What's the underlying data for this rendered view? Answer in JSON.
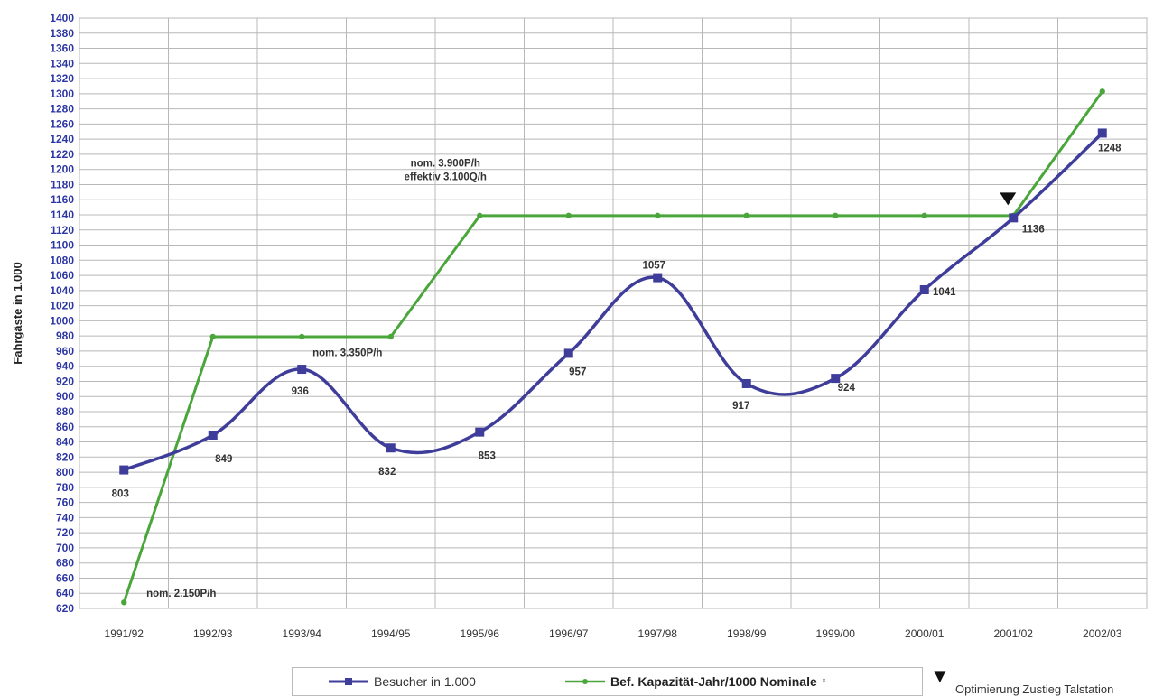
{
  "colors": {
    "series1": "#3f3d9a",
    "series2": "#4aa63a",
    "ytick": "#2b35a4",
    "grid": "#b8b8b8"
  },
  "chart_data": {
    "type": "line",
    "ylabel": "Fahrgäste in 1.000",
    "ylim": [
      620,
      1400
    ],
    "ytick_step": 20,
    "grid": true,
    "legend_placement": "bottom",
    "categories": [
      "1991/92",
      "1992/93",
      "1993/94",
      "1994/95",
      "1995/96",
      "1996/97",
      "1997/98",
      "1998/99",
      "1999/00",
      "2000/01",
      "2001/02",
      "2002/03"
    ],
    "series": [
      {
        "name": "Besucher in 1.000",
        "values": [
          803,
          849,
          936,
          832,
          853,
          957,
          1057,
          917,
          924,
          1041,
          1136,
          1248
        ],
        "data_labels": [
          "803",
          "849",
          "936",
          "832",
          "853",
          "957",
          "1057",
          "917",
          "924",
          "1041",
          "1136",
          "1248"
        ]
      },
      {
        "name": "Bef. Kapazität-Jahr/1000 Nominale",
        "name_suffix": "*",
        "values": [
          628,
          979,
          979,
          979,
          1139,
          1139,
          1139,
          1139,
          1139,
          1139,
          1139,
          1303
        ]
      }
    ],
    "annotations": [
      {
        "text": "nom. 2.150P/h"
      },
      {
        "text": "nom. 3.350P/h"
      },
      {
        "text": "nom. 3.900P/h"
      },
      {
        "text": "effektiv 3.100Q/h"
      }
    ]
  },
  "marker_note": {
    "symbol": "▼",
    "text": "Optimierung Zustieg Talstation"
  }
}
